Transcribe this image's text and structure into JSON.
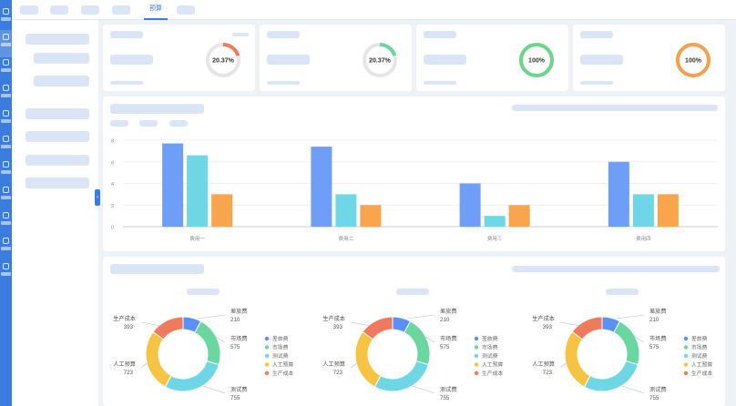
{
  "topbar": {
    "active_tab": "预算"
  },
  "kpis": [
    {
      "text": "20.37%",
      "value": 20.37,
      "color": "#f07a5c"
    },
    {
      "text": "20.37%",
      "value": 20.37,
      "color": "#6ad6a0"
    },
    {
      "text": "100%",
      "value": 100,
      "color": "#6ad68a"
    },
    {
      "text": "100%",
      "value": 100,
      "color": "#f4a04e"
    }
  ],
  "chart_data": [
    {
      "type": "bar",
      "categories": [
        "费用一",
        "费用二",
        "费用三",
        "费用四"
      ],
      "series": [
        {
          "values": [
            7.7,
            7.4,
            4.0,
            6.0
          ],
          "color": "#6f9ef6"
        },
        {
          "values": [
            6.6,
            3.0,
            1.0,
            3.0
          ],
          "color": "#6fd6e6"
        },
        {
          "values": [
            3.0,
            2.0,
            2.0,
            3.0
          ],
          "color": "#f8a54e"
        }
      ],
      "ylim": [
        0,
        8
      ],
      "yticks": [
        0,
        2,
        4,
        6,
        8
      ]
    },
    {
      "type": "pie",
      "labels": [
        "差旅费",
        "市场费",
        "测试费",
        "人工预算",
        "生产成本"
      ],
      "values": [
        210,
        575,
        755,
        723,
        393
      ],
      "colors": [
        "#5b8ff9",
        "#6ad6a0",
        "#6fd6e6",
        "#f6c343",
        "#f07a5c"
      ],
      "legend": "right"
    },
    {
      "type": "pie",
      "labels": [
        "差旅费",
        "市场费",
        "测试费",
        "人工预算",
        "生产成本"
      ],
      "values": [
        210,
        575,
        755,
        723,
        393
      ],
      "colors": [
        "#5b8ff9",
        "#6ad6a0",
        "#6fd6e6",
        "#f6c343",
        "#f07a5c"
      ],
      "legend": "right"
    },
    {
      "type": "pie",
      "labels": [
        "差旅费",
        "市场费",
        "测试费",
        "人工预算",
        "生产成本"
      ],
      "values": [
        210,
        575,
        755,
        723,
        393
      ],
      "colors": [
        "#5b8ff9",
        "#6ad6a0",
        "#6fd6e6",
        "#f6c343",
        "#f07a5c"
      ],
      "legend": "right"
    }
  ],
  "icons": {
    "collapse": "chevron-left-icon"
  }
}
